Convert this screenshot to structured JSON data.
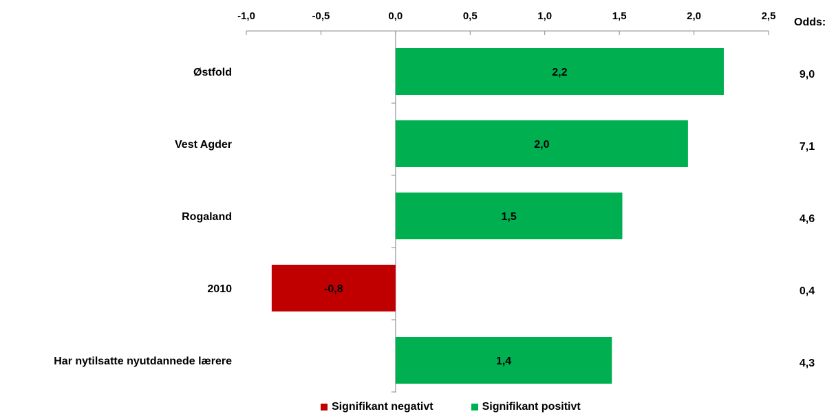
{
  "chart_data": {
    "type": "bar",
    "orientation": "horizontal",
    "xlim": [
      -1.0,
      2.5
    ],
    "ticks": [
      "-1,0",
      "-0,5",
      "0,0",
      "0,5",
      "1,0",
      "1,5",
      "2,0",
      "2,5"
    ],
    "categories": [
      "Østfold",
      "Vest Agder",
      "Rogaland",
      "2010",
      "Har nytilsatte nyutdannede lærere"
    ],
    "values": [
      2.2,
      1.96,
      1.52,
      -0.83,
      1.45
    ],
    "value_labels": [
      "2,2",
      "2,0",
      "1,5",
      "-0,8",
      "1,4"
    ],
    "significance": [
      "positive",
      "positive",
      "positive",
      "negative",
      "positive"
    ],
    "odds_header": "Odds:",
    "odds": [
      "9,0",
      "7,1",
      "4,6",
      "0,4",
      "4,3"
    ],
    "axis_position": "top",
    "grid": false,
    "legend_position": "bottom",
    "legend": [
      {
        "name": "Signifikant negativt",
        "color": "#c00000"
      },
      {
        "name": "Signifikant positivt",
        "color": "#00b050"
      }
    ]
  }
}
